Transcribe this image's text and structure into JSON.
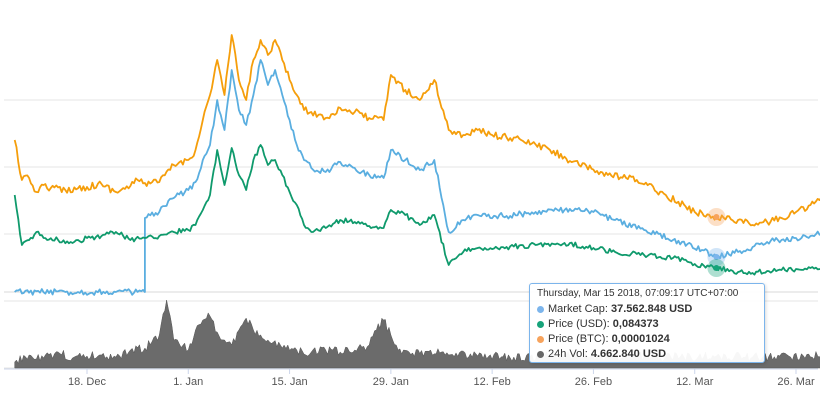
{
  "chart_data": {
    "type": "line",
    "x_ticks": [
      "18. Dec",
      "1. Jan",
      "15. Jan",
      "29. Jan",
      "12. Feb",
      "26. Feb",
      "12. Mar",
      "26. Mar"
    ],
    "x_range": [
      "2017-12-08",
      "2018-03-30"
    ],
    "series": [
      {
        "name": "Price (BTC)",
        "color": "#f7a35c",
        "line_color": "#f59e0b",
        "points": [
          [
            "2017-12-08",
            140
          ],
          [
            "2017-12-09",
            180
          ],
          [
            "2017-12-10",
            178
          ],
          [
            "2017-12-11",
            192
          ],
          [
            "2017-12-12",
            185
          ],
          [
            "2017-12-13",
            188
          ],
          [
            "2017-12-15",
            190
          ],
          [
            "2017-12-18",
            187
          ],
          [
            "2017-12-20",
            184
          ],
          [
            "2017-12-22",
            192
          ],
          [
            "2017-12-24",
            186
          ],
          [
            "2017-12-25",
            180
          ],
          [
            "2017-12-26",
            183
          ],
          [
            "2017-12-28",
            182
          ],
          [
            "2017-12-30",
            165
          ],
          [
            "2018-01-01",
            160
          ],
          [
            "2018-01-02",
            150
          ],
          [
            "2018-01-03",
            120
          ],
          [
            "2018-01-04",
            95
          ],
          [
            "2018-01-05",
            60
          ],
          [
            "2018-01-06",
            95
          ],
          [
            "2018-01-07",
            35
          ],
          [
            "2018-01-08",
            80
          ],
          [
            "2018-01-09",
            100
          ],
          [
            "2018-01-10",
            60
          ],
          [
            "2018-01-11",
            40
          ],
          [
            "2018-01-12",
            55
          ],
          [
            "2018-01-13",
            40
          ],
          [
            "2018-01-14",
            60
          ],
          [
            "2018-01-15",
            80
          ],
          [
            "2018-01-16",
            95
          ],
          [
            "2018-01-17",
            110
          ],
          [
            "2018-01-18",
            112
          ],
          [
            "2018-01-20",
            118
          ],
          [
            "2018-01-22",
            108
          ],
          [
            "2018-01-24",
            112
          ],
          [
            "2018-01-26",
            118
          ],
          [
            "2018-01-28",
            120
          ],
          [
            "2018-01-29",
            75
          ],
          [
            "2018-01-31",
            90
          ],
          [
            "2018-02-02",
            100
          ],
          [
            "2018-02-04",
            80
          ],
          [
            "2018-02-06",
            130
          ],
          [
            "2018-02-08",
            135
          ],
          [
            "2018-02-10",
            130
          ],
          [
            "2018-02-12",
            135
          ],
          [
            "2018-02-16",
            140
          ],
          [
            "2018-02-20",
            150
          ],
          [
            "2018-02-24",
            165
          ],
          [
            "2018-02-28",
            175
          ],
          [
            "2018-03-04",
            180
          ],
          [
            "2018-03-08",
            195
          ],
          [
            "2018-03-12",
            212
          ],
          [
            "2018-03-15",
            217
          ],
          [
            "2018-03-18",
            220
          ],
          [
            "2018-03-20",
            225
          ],
          [
            "2018-03-22",
            222
          ],
          [
            "2018-03-24",
            218
          ],
          [
            "2018-03-26",
            212
          ],
          [
            "2018-03-28",
            205
          ],
          [
            "2018-03-30",
            197
          ]
        ]
      },
      {
        "name": "Market Cap",
        "color": "#7cb5ec",
        "line_color": "#5aaee0",
        "points": [
          [
            "2017-12-08",
            292
          ],
          [
            "2017-12-15",
            292
          ],
          [
            "2017-12-22",
            292
          ],
          [
            "2017-12-26",
            292
          ],
          [
            "2017-12-26",
            218
          ],
          [
            "2017-12-28",
            212
          ],
          [
            "2017-12-30",
            198
          ],
          [
            "2018-01-01",
            190
          ],
          [
            "2018-01-02",
            182
          ],
          [
            "2018-01-03",
            160
          ],
          [
            "2018-01-04",
            145
          ],
          [
            "2018-01-05",
            100
          ],
          [
            "2018-01-06",
            130
          ],
          [
            "2018-01-07",
            70
          ],
          [
            "2018-01-08",
            110
          ],
          [
            "2018-01-09",
            125
          ],
          [
            "2018-01-10",
            95
          ],
          [
            "2018-01-11",
            60
          ],
          [
            "2018-01-12",
            85
          ],
          [
            "2018-01-13",
            70
          ],
          [
            "2018-01-14",
            95
          ],
          [
            "2018-01-15",
            120
          ],
          [
            "2018-01-16",
            145
          ],
          [
            "2018-01-17",
            160
          ],
          [
            "2018-01-18",
            168
          ],
          [
            "2018-01-20",
            172
          ],
          [
            "2018-01-22",
            162
          ],
          [
            "2018-01-24",
            168
          ],
          [
            "2018-01-26",
            175
          ],
          [
            "2018-01-28",
            178
          ],
          [
            "2018-01-29",
            150
          ],
          [
            "2018-01-31",
            160
          ],
          [
            "2018-02-02",
            170
          ],
          [
            "2018-02-04",
            160
          ],
          [
            "2018-02-06",
            232
          ],
          [
            "2018-02-08",
            220
          ],
          [
            "2018-02-10",
            215
          ],
          [
            "2018-02-14",
            216
          ],
          [
            "2018-02-18",
            212
          ],
          [
            "2018-02-22",
            210
          ],
          [
            "2018-02-26",
            212
          ],
          [
            "2018-03-01",
            220
          ],
          [
            "2018-03-05",
            230
          ],
          [
            "2018-03-09",
            240
          ],
          [
            "2018-03-13",
            250
          ],
          [
            "2018-03-15",
            257
          ],
          [
            "2018-03-18",
            252
          ],
          [
            "2018-03-20",
            247
          ],
          [
            "2018-03-22",
            242
          ],
          [
            "2018-03-24",
            240
          ],
          [
            "2018-03-26",
            238
          ],
          [
            "2018-03-28",
            236
          ],
          [
            "2018-03-30",
            233
          ]
        ]
      },
      {
        "name": "Price (USD)",
        "color": "#16a37a",
        "line_color": "#0f9a6c",
        "points": [
          [
            "2017-12-08",
            195
          ],
          [
            "2017-12-09",
            245
          ],
          [
            "2017-12-10",
            240
          ],
          [
            "2017-12-11",
            232
          ],
          [
            "2017-12-12",
            238
          ],
          [
            "2017-12-14",
            240
          ],
          [
            "2017-12-16",
            243
          ],
          [
            "2017-12-18",
            238
          ],
          [
            "2017-12-20",
            236
          ],
          [
            "2017-12-22",
            232
          ],
          [
            "2017-12-24",
            240
          ],
          [
            "2017-12-26",
            238
          ],
          [
            "2017-12-28",
            236
          ],
          [
            "2017-12-30",
            232
          ],
          [
            "2018-01-01",
            230
          ],
          [
            "2018-01-02",
            225
          ],
          [
            "2018-01-03",
            210
          ],
          [
            "2018-01-04",
            195
          ],
          [
            "2018-01-05",
            150
          ],
          [
            "2018-01-06",
            185
          ],
          [
            "2018-01-07",
            148
          ],
          [
            "2018-01-08",
            175
          ],
          [
            "2018-01-09",
            190
          ],
          [
            "2018-01-10",
            160
          ],
          [
            "2018-01-11",
            145
          ],
          [
            "2018-01-12",
            165
          ],
          [
            "2018-01-13",
            160
          ],
          [
            "2018-01-14",
            175
          ],
          [
            "2018-01-15",
            192
          ],
          [
            "2018-01-16",
            205
          ],
          [
            "2018-01-17",
            225
          ],
          [
            "2018-01-18",
            232
          ],
          [
            "2018-01-20",
            228
          ],
          [
            "2018-01-22",
            220
          ],
          [
            "2018-01-24",
            222
          ],
          [
            "2018-01-26",
            226
          ],
          [
            "2018-01-28",
            228
          ],
          [
            "2018-01-29",
            210
          ],
          [
            "2018-01-31",
            215
          ],
          [
            "2018-02-02",
            225
          ],
          [
            "2018-02-04",
            215
          ],
          [
            "2018-02-06",
            265
          ],
          [
            "2018-02-08",
            252
          ],
          [
            "2018-02-10",
            248
          ],
          [
            "2018-02-14",
            247
          ],
          [
            "2018-02-18",
            245
          ],
          [
            "2018-02-22",
            243
          ],
          [
            "2018-02-26",
            248
          ],
          [
            "2018-03-01",
            252
          ],
          [
            "2018-03-05",
            255
          ],
          [
            "2018-03-09",
            258
          ],
          [
            "2018-03-12",
            264
          ],
          [
            "2018-03-15",
            268
          ],
          [
            "2018-03-18",
            272
          ],
          [
            "2018-03-20",
            273
          ],
          [
            "2018-03-22",
            271
          ],
          [
            "2018-03-24",
            270
          ],
          [
            "2018-03-26",
            269
          ],
          [
            "2018-03-28",
            268
          ],
          [
            "2018-03-30",
            267
          ]
        ]
      },
      {
        "name": "24h Vol",
        "color": "#666666",
        "line_color": "#666666",
        "points": [
          [
            "2017-12-08",
            362
          ],
          [
            "2017-12-10",
            355
          ],
          [
            "2017-12-12",
            358
          ],
          [
            "2017-12-14",
            352
          ],
          [
            "2017-12-16",
            358
          ],
          [
            "2017-12-18",
            356
          ],
          [
            "2017-12-20",
            355
          ],
          [
            "2017-12-22",
            357
          ],
          [
            "2017-12-24",
            350
          ],
          [
            "2017-12-26",
            348
          ],
          [
            "2017-12-28",
            335
          ],
          [
            "2017-12-29",
            300
          ],
          [
            "2017-12-30",
            340
          ],
          [
            "2018-01-01",
            350
          ],
          [
            "2018-01-02",
            330
          ],
          [
            "2018-01-03",
            320
          ],
          [
            "2018-01-04",
            316
          ],
          [
            "2018-01-05",
            332
          ],
          [
            "2018-01-06",
            340
          ],
          [
            "2018-01-07",
            345
          ],
          [
            "2018-01-08",
            330
          ],
          [
            "2018-01-09",
            318
          ],
          [
            "2018-01-10",
            330
          ],
          [
            "2018-01-12",
            340
          ],
          [
            "2018-01-14",
            348
          ],
          [
            "2018-01-16",
            350
          ],
          [
            "2018-01-18",
            352
          ],
          [
            "2018-01-20",
            350
          ],
          [
            "2018-01-22",
            352
          ],
          [
            "2018-01-24",
            350
          ],
          [
            "2018-01-26",
            345
          ],
          [
            "2018-01-27",
            330
          ],
          [
            "2018-01-28",
            320
          ],
          [
            "2018-01-29",
            335
          ],
          [
            "2018-01-30",
            350
          ],
          [
            "2018-02-01",
            353
          ],
          [
            "2018-02-05",
            352
          ],
          [
            "2018-02-10",
            356
          ],
          [
            "2018-02-15",
            357
          ],
          [
            "2018-02-20",
            356
          ],
          [
            "2018-02-25",
            355
          ],
          [
            "2018-03-01",
            357
          ],
          [
            "2018-03-05",
            356
          ],
          [
            "2018-03-10",
            357
          ],
          [
            "2018-03-15",
            356
          ],
          [
            "2018-03-20",
            357
          ],
          [
            "2018-03-25",
            356
          ],
          [
            "2018-03-30",
            356
          ]
        ]
      }
    ],
    "tooltip": {
      "header": "Thursday, Mar 15 2018, 07:09:17 UTC+07:00",
      "rows": [
        {
          "name": "Market Cap",
          "value": "37.562.848 USD",
          "color": "#7cb5ec"
        },
        {
          "name": "Price (USD)",
          "value": "0,084373",
          "color": "#16a37a"
        },
        {
          "name": "Price (BTC)",
          "value": "0,00001024",
          "color": "#f7a35c"
        },
        {
          "name": "24h Vol",
          "value": "4.662.840 USD",
          "color": "#666666"
        }
      ]
    },
    "grid": true
  }
}
